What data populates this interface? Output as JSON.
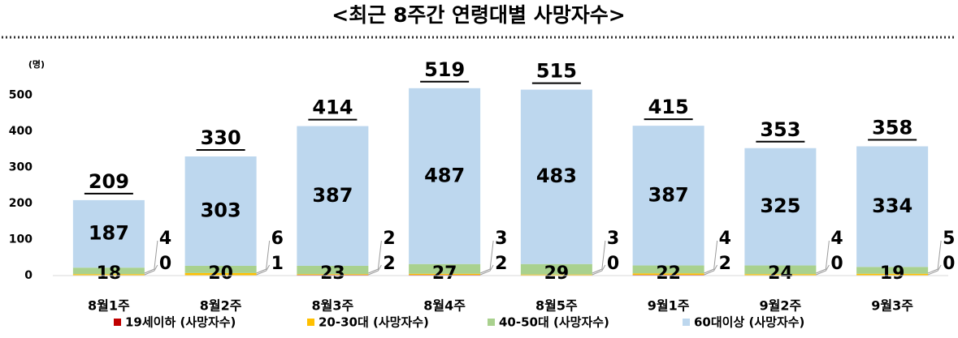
{
  "chart_data": {
    "type": "stacked_bar",
    "title": "<최근 8주간 연령대별 사망자수>",
    "y_unit": "(명)",
    "categories": [
      "8월1주",
      "8월2주",
      "8월3주",
      "8월4주",
      "8월5주",
      "9월1주",
      "9월2주",
      "9월3주"
    ],
    "series": [
      {
        "name": "19세이하 (사망자수)",
        "color": "#c00000",
        "values": [
          0,
          1,
          2,
          2,
          0,
          2,
          0,
          0
        ]
      },
      {
        "name": "20-30대 (사망자수)",
        "color": "#ffc000",
        "values": [
          4,
          6,
          2,
          3,
          3,
          4,
          4,
          5
        ]
      },
      {
        "name": "40-50대 (사망자수)",
        "color": "#a9d18e",
        "values": [
          18,
          20,
          23,
          27,
          29,
          22,
          24,
          19
        ]
      },
      {
        "name": "60대이상 (사망자수)",
        "color": "#bdd7ee",
        "values": [
          187,
          303,
          387,
          487,
          483,
          387,
          325,
          334
        ]
      }
    ],
    "totals": [
      209,
      330,
      414,
      519,
      515,
      415,
      353,
      358
    ],
    "ylim": [
      0,
      550
    ],
    "yticks": [
      0,
      100,
      200,
      300,
      400,
      500
    ],
    "grid": false
  }
}
